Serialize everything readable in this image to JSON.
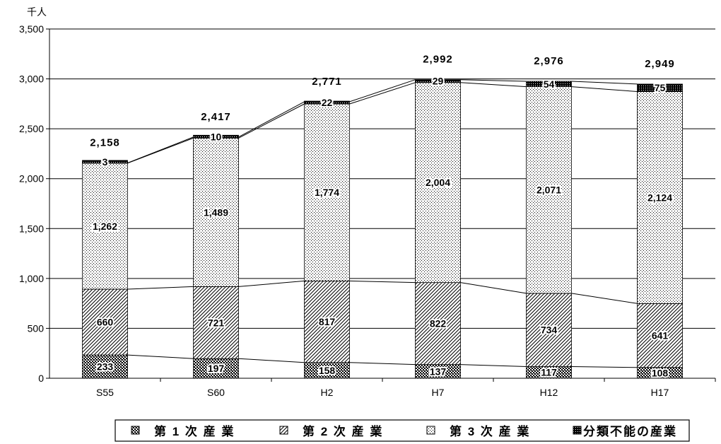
{
  "chart_data": {
    "type": "bar",
    "stacked": true,
    "categories": [
      "S55",
      "S60",
      "H2",
      "H7",
      "H12",
      "H17"
    ],
    "series": [
      {
        "name": "第 1 次 産 業",
        "values": [
          233,
          197,
          158,
          137,
          117,
          108
        ],
        "pattern": "cross"
      },
      {
        "name": "第 2 次 産 業",
        "values": [
          660,
          721,
          817,
          822,
          734,
          641
        ],
        "pattern": "diagonal"
      },
      {
        "name": "第 3 次 産 業",
        "values": [
          1262,
          1489,
          1774,
          2004,
          2071,
          2124
        ],
        "pattern": "dots"
      },
      {
        "name": "分類不能の産業",
        "values": [
          3,
          10,
          22,
          29,
          54,
          75
        ],
        "pattern": "dense"
      }
    ],
    "segment_labels": [
      [
        "233",
        "660",
        "1,262",
        "3"
      ],
      [
        "197",
        "721",
        "1,489",
        "10"
      ],
      [
        "158",
        "817",
        "1,774",
        "22"
      ],
      [
        "137",
        "822",
        "2,004",
        "29"
      ],
      [
        "117",
        "734",
        "2,071",
        "54"
      ],
      [
        "108",
        "641",
        "2,124",
        "75"
      ]
    ],
    "totals": [
      2158,
      2417,
      2771,
      2992,
      2976,
      2949
    ],
    "total_labels": [
      "2,158",
      "2,417",
      "2,771",
      "2,992",
      "2,976",
      "2,949"
    ],
    "ylabel": "千人",
    "ylim": [
      0,
      3500
    ],
    "yticks": [
      0,
      500,
      1000,
      1500,
      2000,
      2500,
      3000,
      3500
    ],
    "ytick_labels": [
      "0",
      "500",
      "1,000",
      "1,500",
      "2,000",
      "2,500",
      "3,000",
      "3,500"
    ],
    "grid": true,
    "legend_position": "bottom",
    "colors": {
      "bar_fill": "#ffffff",
      "pattern_ink": "#000000",
      "grid": "#000000"
    }
  }
}
